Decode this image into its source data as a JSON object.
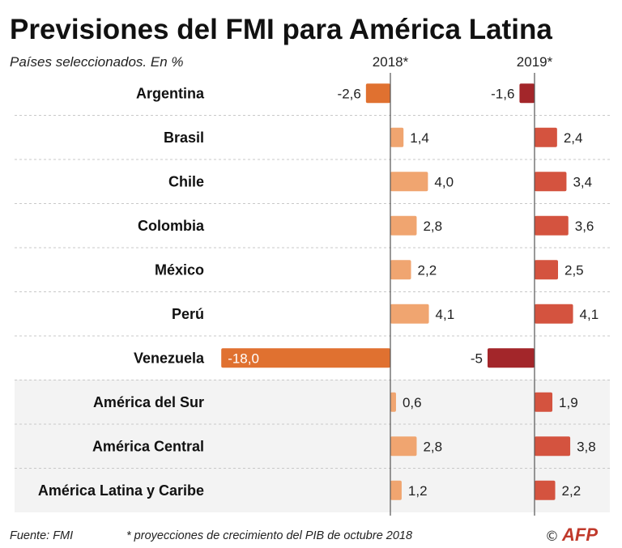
{
  "chart_data": {
    "type": "bar",
    "title": "Previsiones del FMI para América Latina",
    "subtitle": "Países seleccionados. En %",
    "categories": [
      "Argentina",
      "Brasil",
      "Chile",
      "Colombia",
      "México",
      "Perú",
      "Venezuela",
      "América del Sur",
      "América Central",
      "América Latina y Caribe"
    ],
    "aggregate_start_index": 7,
    "series": [
      {
        "name": "2018*",
        "values": [
          -2.6,
          1.4,
          4.0,
          2.8,
          2.2,
          4.1,
          -18.0,
          0.6,
          2.8,
          1.2
        ],
        "labels": [
          "-2,6",
          "1,4",
          "4,0",
          "2,8",
          "2,2",
          "4,1",
          "-18,0",
          "0,6",
          "2,8",
          "1,2"
        ],
        "color": "#f0a570",
        "negative_color": "#e07130"
      },
      {
        "name": "2019*",
        "values": [
          -1.6,
          2.4,
          3.4,
          3.6,
          2.5,
          4.1,
          -5,
          1.9,
          3.8,
          2.2
        ],
        "labels": [
          "-1,6",
          "2,4",
          "3,4",
          "3,6",
          "2,5",
          "4,1",
          "-5",
          "1,9",
          "3,8",
          "2,2"
        ],
        "color": "#d4533f",
        "negative_color": "#a3262a"
      }
    ],
    "grid": false,
    "legend": "top"
  },
  "colors": {
    "aggregate_band": "#f3f3f3",
    "separator": "#c8c8c8",
    "axis": "#555555",
    "logo_red": "#c0392b"
  },
  "footer": {
    "source": "Fuente: FMI",
    "note": "* proyecciones de crecimiento del PIB de octubre 2018",
    "copyright": "©",
    "logo": "AFP"
  }
}
